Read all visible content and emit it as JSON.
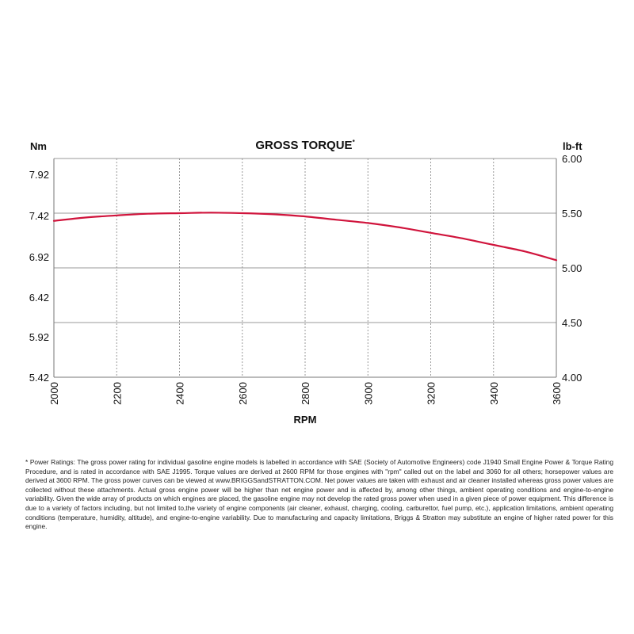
{
  "chart_data": {
    "type": "line",
    "title": "GROSS TORQUE",
    "title_marker": "*",
    "xlabel": "RPM",
    "ylabel_left": "Nm",
    "ylabel_right": "lb-ft",
    "xlim": [
      2000,
      3600
    ],
    "x_ticks": [
      "2000",
      "2200",
      "2400",
      "2600",
      "2800",
      "3000",
      "3200",
      "3400",
      "3600"
    ],
    "x_tick_values": [
      2000,
      2200,
      2400,
      2600,
      2800,
      3000,
      3200,
      3400,
      3600
    ],
    "ylim_left": [
      5.42,
      7.92
    ],
    "ylim_right": [
      4.0,
      6.0
    ],
    "y_ticks_left": [
      "7.92",
      "7.42",
      "6.92",
      "6.42",
      "5.92",
      "5.42"
    ],
    "y_ticks_right": [
      "6.00",
      "5.50",
      "5.00",
      "4.50",
      "4.00"
    ],
    "y_tick_values_right": [
      6.0,
      5.5,
      5.0,
      4.5,
      4.0
    ],
    "grid": {
      "vertical": "dashed",
      "horizontal": "solid"
    },
    "series": [
      {
        "color": "#d0143c",
        "axis": "right",
        "x": [
          2000,
          2100,
          2200,
          2300,
          2400,
          2500,
          2600,
          2700,
          2800,
          2900,
          3000,
          3100,
          3200,
          3300,
          3400,
          3500,
          3600
        ],
        "y": [
          5.43,
          5.46,
          5.48,
          5.495,
          5.5,
          5.505,
          5.5,
          5.49,
          5.47,
          5.44,
          5.41,
          5.37,
          5.32,
          5.27,
          5.21,
          5.15,
          5.07
        ]
      }
    ]
  },
  "footnote": "* Power Ratings: The gross power rating for individual gasoline engine models is labelled in accordance with SAE (Society of Automotive Engineers) code J1940 Small Engine Power & Torque Rating Procedure, and is rated in accordance with SAE J1995. Torque values are derived at 2600 RPM for those engines with \"rpm\" called out on the label and 3060 for all others; horsepower values are derived at 3600 RPM. The gross power curves can be viewed at www.BRIGGSandSTRATTON.COM. Net power values are taken with exhaust and air cleaner installed whereas gross power values are collected without these attachments. Actual gross engine power will be higher than net engine power and is affected by, among other things, ambient operating conditions and engine-to-engine variability. Given the wide array of products on which engines are placed, the gasoline engine may not develop the rated gross power when used in a given piece of power equipment. This difference is due to a variety of factors including, but not limited to,the variety of engine components (air cleaner, exhaust, charging, cooling, carburettor, fuel pump, etc.), application limitations, ambient operating conditions (temperature, humidity, altitude), and engine-to-engine variability. Due to manufacturing and capacity limitations, Briggs & Stratton may substitute an engine of higher rated power for this engine.",
  "colors": {
    "curve": "#d0143c",
    "axis": "#777777",
    "grid": "#9a9a9a",
    "text": "#111111"
  }
}
